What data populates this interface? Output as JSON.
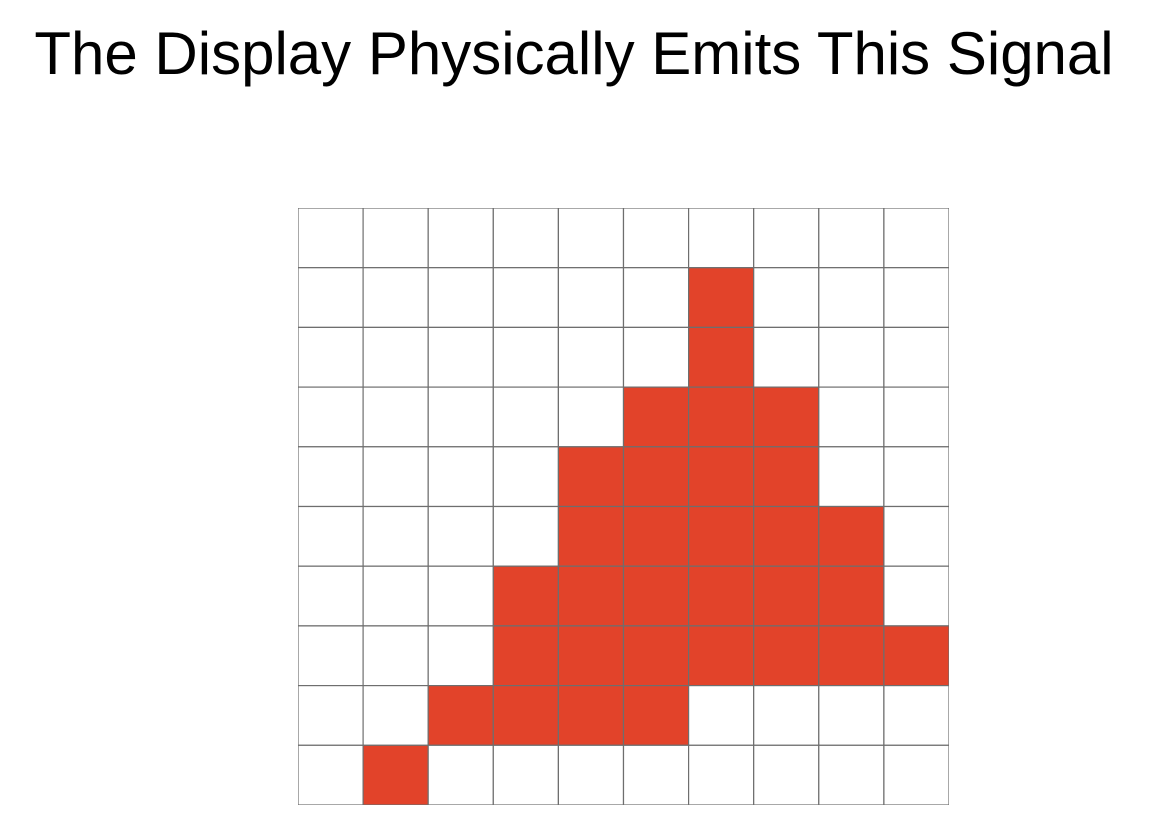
{
  "title": "The Display Physically Emits This Signal",
  "grid": {
    "rows": 10,
    "cols": 10,
    "fill_color": "#e2432a",
    "empty_color": "#ffffff",
    "line_color": "#6e6e6e",
    "filled": [
      [
        0,
        0,
        0,
        0,
        0,
        0,
        0,
        0,
        0,
        0
      ],
      [
        0,
        0,
        0,
        0,
        0,
        0,
        1,
        0,
        0,
        0
      ],
      [
        0,
        0,
        0,
        0,
        0,
        0,
        1,
        0,
        0,
        0
      ],
      [
        0,
        0,
        0,
        0,
        0,
        1,
        1,
        1,
        0,
        0
      ],
      [
        0,
        0,
        0,
        0,
        1,
        1,
        1,
        1,
        0,
        0
      ],
      [
        0,
        0,
        0,
        0,
        1,
        1,
        1,
        1,
        1,
        0
      ],
      [
        0,
        0,
        0,
        1,
        1,
        1,
        1,
        1,
        1,
        0
      ],
      [
        0,
        0,
        0,
        1,
        1,
        1,
        1,
        1,
        1,
        1
      ],
      [
        0,
        0,
        1,
        1,
        1,
        1,
        0,
        0,
        0,
        0
      ],
      [
        0,
        1,
        0,
        0,
        0,
        0,
        0,
        0,
        0,
        0
      ]
    ]
  }
}
